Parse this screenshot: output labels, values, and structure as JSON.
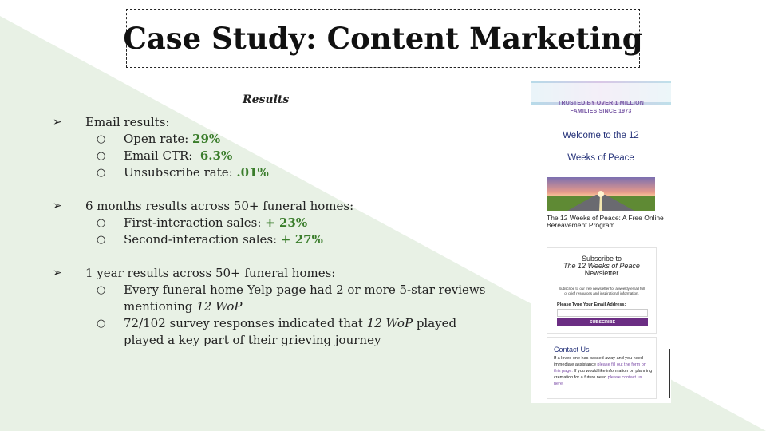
{
  "title": "Case Study: Content Marketing",
  "results_heading": "Results",
  "bullet_marker": "➢",
  "sub_marker": "○",
  "sections": [
    {
      "heading": "Email results:",
      "items": [
        {
          "label": "Open rate: ",
          "value": "29%"
        },
        {
          "label": "Email CTR:  ",
          "value": "6.3%"
        },
        {
          "label": "Unsubscribe rate: ",
          "value": ".01%"
        }
      ]
    },
    {
      "heading": "6 months results across 50+ funeral homes:",
      "items": [
        {
          "label": "First-interaction sales: ",
          "value": "+ 23%"
        },
        {
          "label": "Second-interaction sales: ",
          "value": "+ 27%"
        }
      ]
    },
    {
      "heading": "1 year results across 50+ funeral homes:",
      "items": [
        {
          "line1": "Every funeral home Yelp page had 2 or more 5-star reviews",
          "line2_pre": "mentioning ",
          "line2_em": "12 WoP"
        },
        {
          "line1_pre": "72/102 survey responses indicated that ",
          "line1_em": "12 WoP",
          "line1_post": " played",
          "line2": "played a key part of their grieving journey"
        }
      ]
    }
  ],
  "screenshot": {
    "trust_line1": "TRUSTED BY OVER 1 MILLION",
    "trust_line2": "FAMILIES SINCE 1973",
    "welcome_line1": "Welcome to the 12",
    "welcome_line2": "Weeks of Peace",
    "caption": "The 12 Weeks of Peace: A Free Online Bereavement Program",
    "subscribe_line1": "Subscribe to",
    "subscribe_line2": "The 12 Weeks of Peace",
    "subscribe_line3": "Newsletter",
    "subscribe_small": "Subscribe to our free newsletter for a weekly email full of grief resources and inspirational information.",
    "email_label": "Please Type Your Email Address:",
    "subscribe_button": "SUBSCRIBE",
    "contact_title": "Contact Us",
    "contact_text1": "If a loved one has passed away and you need immediate assistance ",
    "contact_link1": "please fill out the form on this page.",
    "contact_text2": "If you would like information on planning cremation for a future need ",
    "contact_link2": "please contact us here."
  },
  "colors": {
    "accent_green": "#3a7d2b",
    "background_wedge": "#e8f1e5",
    "purple": "#6b2d83",
    "navy": "#26337a"
  }
}
